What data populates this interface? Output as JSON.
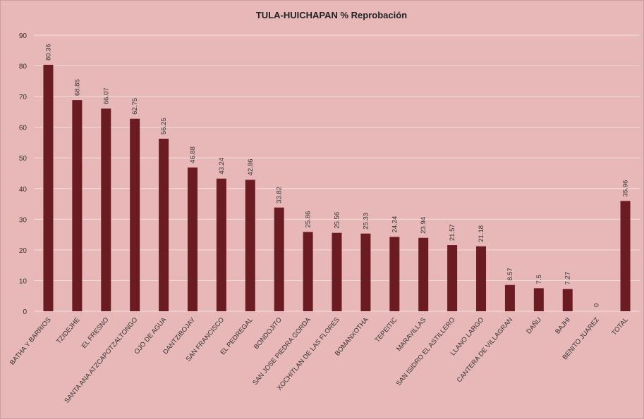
{
  "chart_data": {
    "type": "bar",
    "title": "TULA-HUICHAPAN % Reprobación",
    "categories": [
      "BATHA Y BARRIOS",
      "TZIDEJHE",
      "EL FRESNO",
      "SANTA ANA ATZCAPOTZALTONGO",
      "OJO DE AGUA",
      "DANTZIBOJAY",
      "SAN FRANCISCO",
      "EL PEDREGAL",
      "BONDOJITO",
      "SAN JOSE PIEDRA GORDA",
      "XOCHITLAN DE LAS FLORES",
      "BOMANXOTHA",
      "TEPEITIC",
      "MARAVILLAS",
      "SAN ISIDRO EL ASTILLERO",
      "LLANO LARGO",
      "CANTERA DE VILLAGRAN",
      "DAÑU",
      "BAJHI",
      "BENITO JUAREZ",
      "TOTAL"
    ],
    "values": [
      80.36,
      68.85,
      66.07,
      62.75,
      56.25,
      46.88,
      43.24,
      42.86,
      33.82,
      25.86,
      25.56,
      25.33,
      24.24,
      23.94,
      21.57,
      21.18,
      8.57,
      7.5,
      7.27,
      0,
      35.96
    ],
    "color": "#6b1c22",
    "ylim": [
      0,
      90
    ],
    "yticks": [
      0,
      10,
      20,
      30,
      40,
      50,
      60,
      70,
      80,
      90
    ],
    "grid": true
  }
}
